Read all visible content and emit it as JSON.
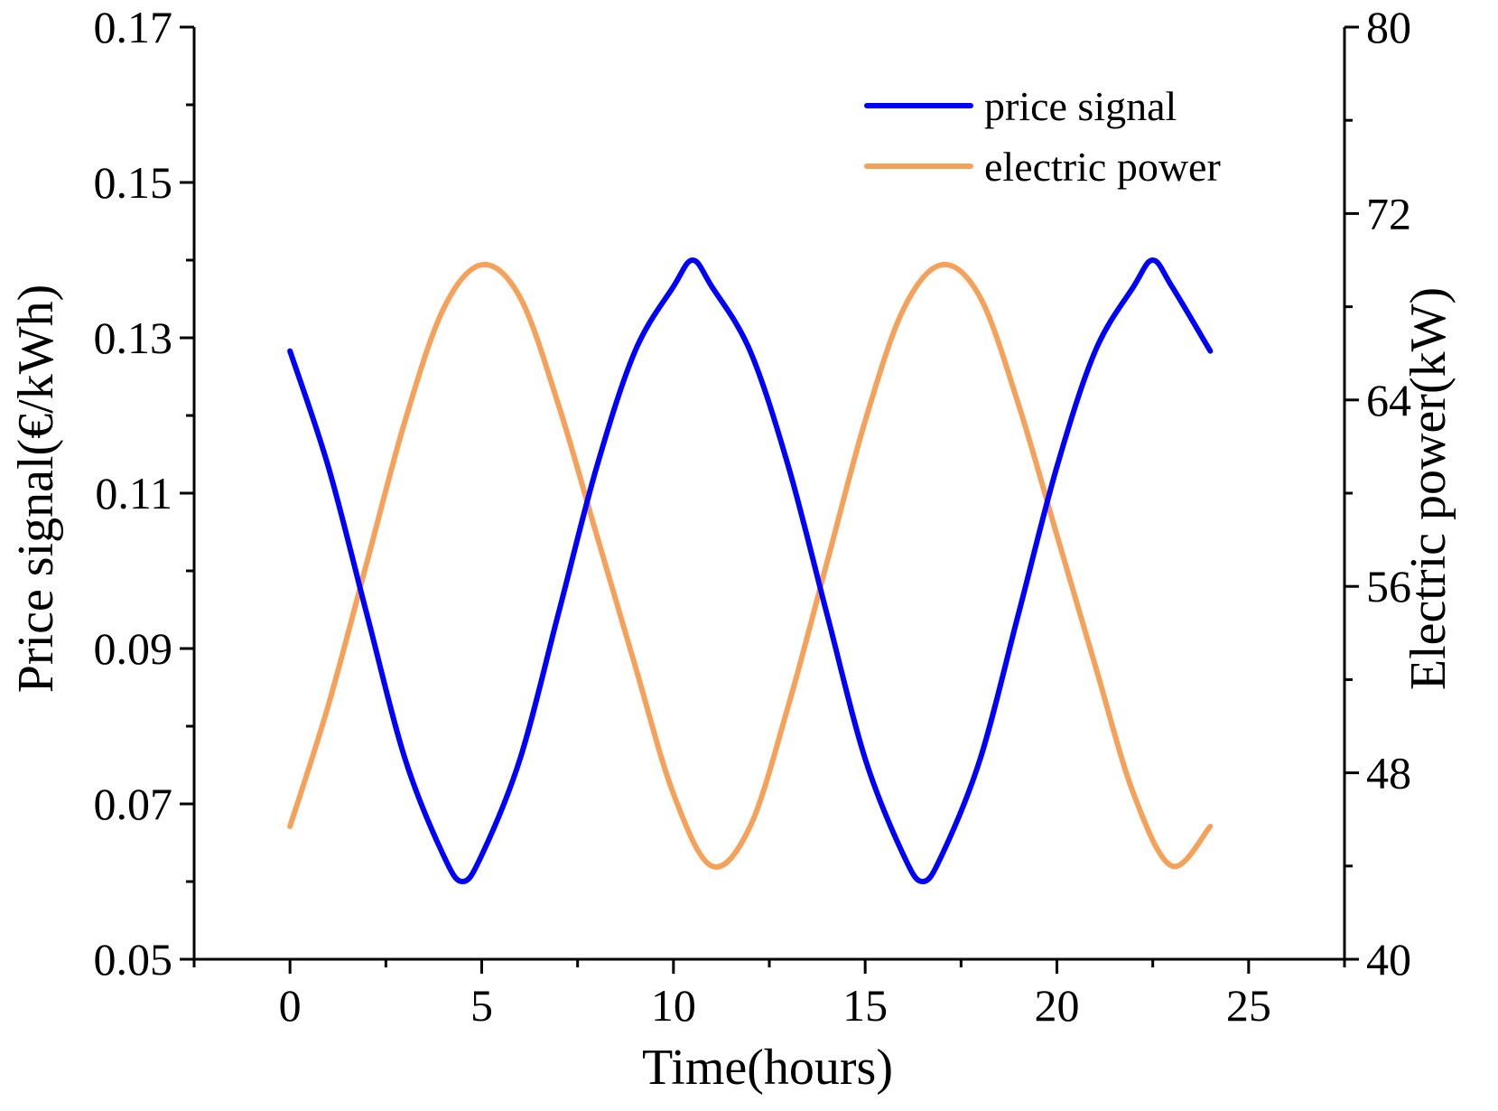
{
  "chart_data": {
    "type": "line",
    "xlabel": "Time(hours)",
    "ylabel_left": "Price signal(€/kWh)",
    "ylabel_right": "Electric power(kW)",
    "xlim": [
      -2.5,
      27.5
    ],
    "ylim_left": [
      0.05,
      0.17
    ],
    "ylim_right": [
      40,
      80
    ],
    "x_ticks": [
      0,
      5,
      10,
      15,
      20,
      25
    ],
    "y_left_ticks": [
      0.05,
      0.07,
      0.09,
      0.11,
      0.13,
      0.15,
      0.17
    ],
    "y_right_ticks": [
      40,
      48,
      56,
      64,
      72,
      80
    ],
    "x_tick_labels": [
      "0",
      "5",
      "10",
      "15",
      "20",
      "25"
    ],
    "y_left_tick_labels": [
      "0.05",
      "0.07",
      "0.09",
      "0.11",
      "0.13",
      "0.15",
      "0.17"
    ],
    "y_right_tick_labels": [
      "40",
      "48",
      "56",
      "64",
      "72",
      "80"
    ],
    "grid": false,
    "legend_position": "top-right",
    "series": [
      {
        "name": "price signal",
        "axis": "left",
        "color": "#0000ff",
        "x": [
          0,
          1,
          2,
          3,
          4,
          4.5,
          5,
          6,
          7,
          8,
          9,
          10,
          10.5,
          11,
          12,
          13,
          14,
          15,
          16,
          16.5,
          17,
          18,
          19,
          20,
          21,
          22,
          22.5,
          23,
          24
        ],
        "y": [
          0.1283,
          0.1134,
          0.0945,
          0.0758,
          0.0634,
          0.06,
          0.0634,
          0.0758,
          0.0945,
          0.1134,
          0.1283,
          0.1366,
          0.14,
          0.1366,
          0.1283,
          0.1134,
          0.0945,
          0.0758,
          0.0634,
          0.06,
          0.0634,
          0.0758,
          0.0945,
          0.1134,
          0.1283,
          0.1366,
          0.14,
          0.1366,
          0.1283
        ]
      },
      {
        "name": "electric power",
        "axis": "right",
        "color": "#f5a15a",
        "x": [
          0,
          1,
          2,
          3,
          4,
          5,
          6,
          7,
          8,
          9,
          10,
          11,
          12,
          13,
          14,
          15,
          16,
          17,
          18,
          19,
          20,
          21,
          22,
          23,
          24
        ],
        "y": [
          45.7,
          50.9,
          57.0,
          63.1,
          67.9,
          69.8,
          68.4,
          63.8,
          58.2,
          52.6,
          47.1,
          44.0,
          45.7,
          50.9,
          57.0,
          63.1,
          67.9,
          69.8,
          68.4,
          63.8,
          58.2,
          52.6,
          47.1,
          44.0,
          45.7
        ]
      }
    ]
  }
}
